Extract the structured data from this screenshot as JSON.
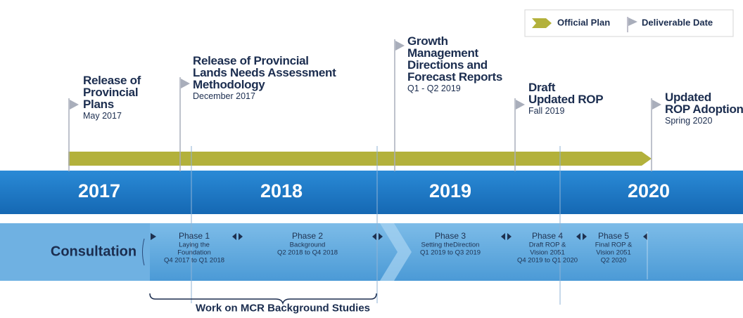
{
  "legend": [
    "Official Plan",
    "Deliverable Date"
  ],
  "milestones": [
    {
      "title_lines": [
        "Release of",
        "Provincial",
        "Plans"
      ],
      "date": "May 2017"
    },
    {
      "title_lines": [
        "Release of Provincial",
        "Lands Needs Assessment",
        "Methodology"
      ],
      "date": "December 2017"
    },
    {
      "title_lines": [
        "Growth",
        "Management",
        "Directions and",
        "Forecast Reports"
      ],
      "date": "Q1 - Q2 2019"
    },
    {
      "title_lines": [
        "Draft",
        "Updated ROP"
      ],
      "date": "Fall 2019"
    },
    {
      "title_lines": [
        "Updated",
        "ROP Adoption"
      ],
      "date": "Spring 2020"
    }
  ],
  "years": [
    "2017",
    "2018",
    "2019",
    "2020"
  ],
  "consultation": "Consultation",
  "phases": [
    {
      "name": "Phase 1",
      "desc_lines": [
        "Laying the",
        "Foundation"
      ],
      "period": "Q4 2017 to Q1 2018"
    },
    {
      "name": "Phase 2",
      "desc_lines": [
        "Background"
      ],
      "period": "Q2 2018 to Q4 2018"
    },
    {
      "name": "Phase 3",
      "desc_lines": [
        "Setting theDirection"
      ],
      "period": "Q1 2019 to Q3 2019"
    },
    {
      "name": "Phase 4",
      "desc_lines": [
        "Draft ROP &",
        "Vision 2051"
      ],
      "period": "Q4 2019 to Q1 2020"
    },
    {
      "name": "Phase 5",
      "desc_lines": [
        "Final ROP &",
        "Vision 2051"
      ],
      "period": "Q2 2020"
    }
  ],
  "bracket_label": "Work on MCR Background Studies"
}
